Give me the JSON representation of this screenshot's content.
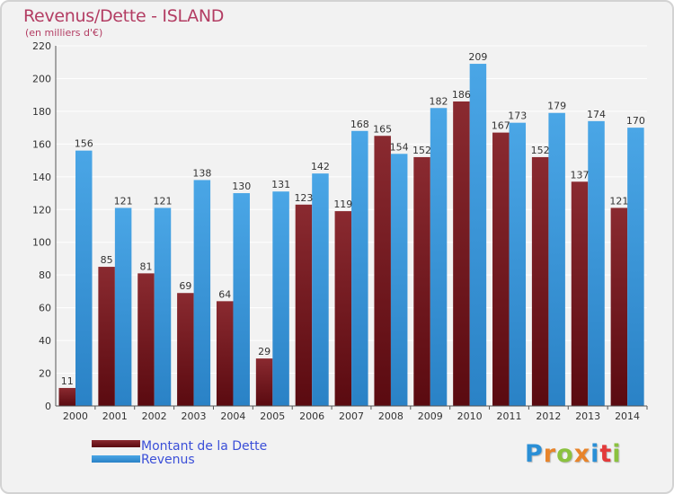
{
  "header": {
    "title": "Revenus/Dette - ISLAND",
    "subtitle": "(en milliers d'€)"
  },
  "colors": {
    "debt": "#7a1f26",
    "revenue": "#3b97db",
    "title": "#b33d63",
    "legend_text": "#3b4fd8"
  },
  "logo": {
    "letters": [
      {
        "char": "P",
        "color": "#2a8fd6"
      },
      {
        "char": "r",
        "color": "#e8842a"
      },
      {
        "char": "o",
        "color": "#8bc23f"
      },
      {
        "char": "x",
        "color": "#e8842a"
      },
      {
        "char": "i",
        "color": "#2a8fd6"
      },
      {
        "char": "t",
        "color": "#e33a3a"
      },
      {
        "char": "i",
        "color": "#8bc23f"
      }
    ]
  },
  "chart_data": {
    "type": "bar",
    "title": "Revenus/Dette - ISLAND",
    "ylabel": "(en milliers d'€)",
    "xlabel": "",
    "categories": [
      "2000",
      "2001",
      "2002",
      "2003",
      "2004",
      "2005",
      "2006",
      "2007",
      "2008",
      "2009",
      "2010",
      "2011",
      "2012",
      "2013",
      "2014"
    ],
    "series": [
      {
        "name": "Montant de la Dette",
        "values": [
          11,
          85,
          81,
          69,
          64,
          29,
          123,
          119,
          165,
          152,
          186,
          167,
          152,
          137,
          121
        ]
      },
      {
        "name": "Revenus",
        "values": [
          156,
          121,
          121,
          138,
          130,
          131,
          142,
          168,
          154,
          182,
          209,
          173,
          179,
          174,
          170
        ]
      }
    ],
    "ylim": [
      0,
      220
    ],
    "yticks": [
      0,
      20,
      40,
      60,
      80,
      100,
      120,
      140,
      160,
      180,
      200,
      220
    ],
    "grid": true,
    "legend_position": "bottom-left"
  }
}
